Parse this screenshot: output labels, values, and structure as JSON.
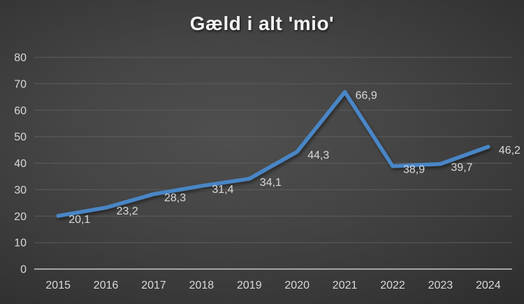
{
  "chart_data": {
    "type": "line",
    "title": "Gæld i alt 'mio'",
    "categories": [
      "2015",
      "2016",
      "2017",
      "2018",
      "2019",
      "2020",
      "2021",
      "2022",
      "2023",
      "2024"
    ],
    "series": [
      {
        "name": "Gæld i alt",
        "values": [
          20.1,
          23.2,
          28.3,
          31.4,
          34.1,
          44.3,
          66.9,
          38.9,
          39.7,
          46.2
        ],
        "value_labels": [
          "20,1",
          "23,2",
          "28,3",
          "31,4",
          "34,1",
          "44,3",
          "66,9",
          "38,9",
          "39,7",
          "46,2"
        ]
      }
    ],
    "xlabel": "",
    "ylabel": "",
    "ylim": [
      0,
      80
    ],
    "y_ticks": [
      0,
      10,
      20,
      30,
      40,
      50,
      60,
      70,
      80
    ],
    "grid": "horizontal",
    "legend": "none",
    "colors": {
      "line": "#4a86c6",
      "data_label": "#d9d9d9",
      "tick_label": "#d9d9d9",
      "gridline": "#5c5c5c",
      "axis_line": "#a6a6a6",
      "title": "#f2f2f2"
    }
  }
}
